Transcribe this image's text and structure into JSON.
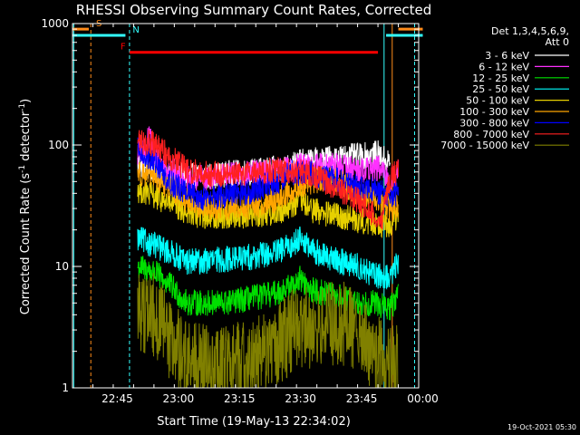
{
  "chart_data": {
    "type": "line",
    "title": "RHESSI Observing Summary Count Rates, Corrected",
    "xlabel": "Start Time (19-May-13 22:34:02)",
    "ylabel": "Corrected Count Rate (s⁻¹ detector⁻¹)",
    "ylabel_parts": {
      "a": "Corrected Count Rate (s",
      "b": "-1",
      "c": " detector",
      "d": "-1",
      "e": ")"
    },
    "y_scale": "log",
    "ylim": [
      1,
      1000
    ],
    "xlim_minutes": [
      0,
      85
    ],
    "x_ticks": [
      {
        "label": "22:45",
        "min": 11
      },
      {
        "label": "23:00",
        "min": 26
      },
      {
        "label": "23:15",
        "min": 41
      },
      {
        "label": "23:30",
        "min": 56
      },
      {
        "label": "23:45",
        "min": 71
      },
      {
        "label": "00:00",
        "min": 86
      }
    ],
    "y_ticks": [
      {
        "label": "1",
        "value": 1
      },
      {
        "label": "10",
        "value": 10
      },
      {
        "label": "100",
        "value": 100
      },
      {
        "label": "1000",
        "value": 1000
      }
    ],
    "legend_header": [
      "Det 1,3,4,5,6,9,",
      "Att 0"
    ],
    "legend_placement": "right",
    "series": [
      {
        "name": "3 - 6 keV",
        "color": "#ffffff",
        "points": [
          [
            16,
            70
          ],
          [
            20,
            62
          ],
          [
            24,
            58
          ],
          [
            28,
            55
          ],
          [
            33,
            55
          ],
          [
            38,
            58
          ],
          [
            43,
            60
          ],
          [
            48,
            62
          ],
          [
            52,
            65
          ],
          [
            56,
            72
          ],
          [
            60,
            75
          ],
          [
            64,
            78
          ],
          [
            68,
            80
          ],
          [
            72,
            82
          ],
          [
            75,
            85
          ],
          [
            78,
            70
          ]
        ]
      },
      {
        "name": "6 - 12 keV",
        "color": "#ff30ff",
        "points": [
          [
            16,
            85
          ],
          [
            18,
            90
          ],
          [
            19,
            130
          ],
          [
            20,
            80
          ],
          [
            22,
            70
          ],
          [
            25,
            60
          ],
          [
            28,
            52
          ],
          [
            33,
            54
          ],
          [
            38,
            56
          ],
          [
            43,
            58
          ],
          [
            48,
            60
          ],
          [
            52,
            63
          ],
          [
            56,
            67
          ],
          [
            60,
            68
          ],
          [
            64,
            68
          ],
          [
            68,
            65
          ],
          [
            72,
            62
          ],
          [
            75,
            65
          ],
          [
            78,
            50
          ],
          [
            80,
            60
          ]
        ]
      },
      {
        "name": "12 - 25 keV",
        "color": "#00e000",
        "points": [
          [
            16,
            10
          ],
          [
            20,
            9
          ],
          [
            24,
            7
          ],
          [
            28,
            5
          ],
          [
            32,
            5
          ],
          [
            38,
            5
          ],
          [
            44,
            5.5
          ],
          [
            50,
            6
          ],
          [
            54,
            7
          ],
          [
            56,
            8
          ],
          [
            58,
            6.5
          ],
          [
            62,
            6
          ],
          [
            66,
            5.5
          ],
          [
            70,
            5
          ],
          [
            74,
            5
          ],
          [
            78,
            4.5
          ],
          [
            80,
            6
          ]
        ]
      },
      {
        "name": "25 - 50 keV",
        "color": "#00ffff",
        "points": [
          [
            16,
            17
          ],
          [
            20,
            15
          ],
          [
            24,
            13
          ],
          [
            28,
            11
          ],
          [
            32,
            11
          ],
          [
            38,
            11.5
          ],
          [
            44,
            12
          ],
          [
            50,
            13
          ],
          [
            54,
            15
          ],
          [
            56,
            18
          ],
          [
            58,
            14
          ],
          [
            62,
            12
          ],
          [
            66,
            11
          ],
          [
            70,
            10
          ],
          [
            74,
            8.5
          ],
          [
            78,
            8
          ],
          [
            80,
            11
          ]
        ]
      },
      {
        "name": "50 - 100 keV",
        "color": "#e6d000",
        "points": [
          [
            16,
            43
          ],
          [
            20,
            38
          ],
          [
            24,
            33
          ],
          [
            28,
            28
          ],
          [
            32,
            26
          ],
          [
            38,
            26
          ],
          [
            44,
            26.5
          ],
          [
            50,
            28
          ],
          [
            54,
            32
          ],
          [
            56,
            35
          ],
          [
            58,
            30
          ],
          [
            62,
            27
          ],
          [
            66,
            26
          ],
          [
            70,
            24
          ],
          [
            74,
            23
          ],
          [
            78,
            22
          ],
          [
            80,
            26
          ]
        ]
      },
      {
        "name": "100 - 300 keV",
        "color": "#ffa500",
        "points": [
          [
            16,
            60
          ],
          [
            20,
            55
          ],
          [
            24,
            45
          ],
          [
            28,
            35
          ],
          [
            32,
            31
          ],
          [
            38,
            30
          ],
          [
            44,
            31
          ],
          [
            50,
            35
          ],
          [
            54,
            42
          ],
          [
            58,
            50
          ],
          [
            62,
            53
          ],
          [
            66,
            48
          ],
          [
            70,
            40
          ],
          [
            74,
            35
          ],
          [
            78,
            30
          ],
          [
            80,
            32
          ]
        ]
      },
      {
        "name": "300 - 800 keV",
        "color": "#0000ff",
        "points": [
          [
            16,
            90
          ],
          [
            20,
            75
          ],
          [
            24,
            50
          ],
          [
            28,
            40
          ],
          [
            32,
            37
          ],
          [
            38,
            38
          ],
          [
            44,
            42
          ],
          [
            50,
            50
          ],
          [
            54,
            60
          ],
          [
            58,
            58
          ],
          [
            62,
            55
          ],
          [
            66,
            50
          ],
          [
            70,
            45
          ],
          [
            74,
            42
          ],
          [
            78,
            38
          ],
          [
            80,
            40
          ]
        ]
      },
      {
        "name": "800 - 7000 keV",
        "color": "#ff2020",
        "points": [
          [
            16,
            110
          ],
          [
            20,
            100
          ],
          [
            24,
            80
          ],
          [
            28,
            62
          ],
          [
            32,
            58
          ],
          [
            38,
            58
          ],
          [
            44,
            60
          ],
          [
            50,
            62
          ],
          [
            54,
            62
          ],
          [
            58,
            58
          ],
          [
            62,
            50
          ],
          [
            66,
            42
          ],
          [
            70,
            35
          ],
          [
            73,
            28
          ],
          [
            76,
            25
          ],
          [
            78,
            55
          ],
          [
            80,
            60
          ]
        ]
      },
      {
        "name": "7000 - 15000 keV",
        "color": "#808000",
        "points": [
          [
            16,
            4.5
          ],
          [
            20,
            4
          ],
          [
            24,
            2.5
          ],
          [
            28,
            1.6
          ],
          [
            32,
            1.5
          ],
          [
            38,
            1.5
          ],
          [
            44,
            1.7
          ],
          [
            50,
            2.2
          ],
          [
            54,
            3
          ],
          [
            58,
            3.2
          ],
          [
            62,
            3.3
          ],
          [
            66,
            3.5
          ],
          [
            70,
            2.8
          ],
          [
            74,
            2
          ],
          [
            78,
            1.5
          ],
          [
            80,
            1.6
          ]
        ]
      }
    ],
    "flags": [
      {
        "label": "S",
        "color": "#ff8c1a",
        "level": 900,
        "segments": [
          [
            0,
            4
          ],
          [
            80,
            86
          ]
        ]
      },
      {
        "label": "N",
        "color": "#33ffff",
        "level": 800,
        "segments": [
          [
            0,
            13
          ],
          [
            77,
            86
          ]
        ]
      },
      {
        "label": "F",
        "color": "#ff0000",
        "level": 580,
        "segments": [
          [
            14,
            75
          ]
        ]
      }
    ],
    "vlines": [
      {
        "min": 4.5,
        "color": "#ff8c1a",
        "dashed": true
      },
      {
        "min": 14,
        "color": "#33ffff",
        "dashed": true
      },
      {
        "min": 76.5,
        "color": "#33ffff",
        "dashed": false
      },
      {
        "min": 78.5,
        "color": "#ff8c1a",
        "dashed": false
      },
      {
        "min": 84,
        "color": "#33ffff",
        "dashed": true
      },
      {
        "min": 0.3,
        "color": "#33ffff",
        "dashed": false
      }
    ],
    "timestamp": "19-Oct-2021 05:30"
  }
}
